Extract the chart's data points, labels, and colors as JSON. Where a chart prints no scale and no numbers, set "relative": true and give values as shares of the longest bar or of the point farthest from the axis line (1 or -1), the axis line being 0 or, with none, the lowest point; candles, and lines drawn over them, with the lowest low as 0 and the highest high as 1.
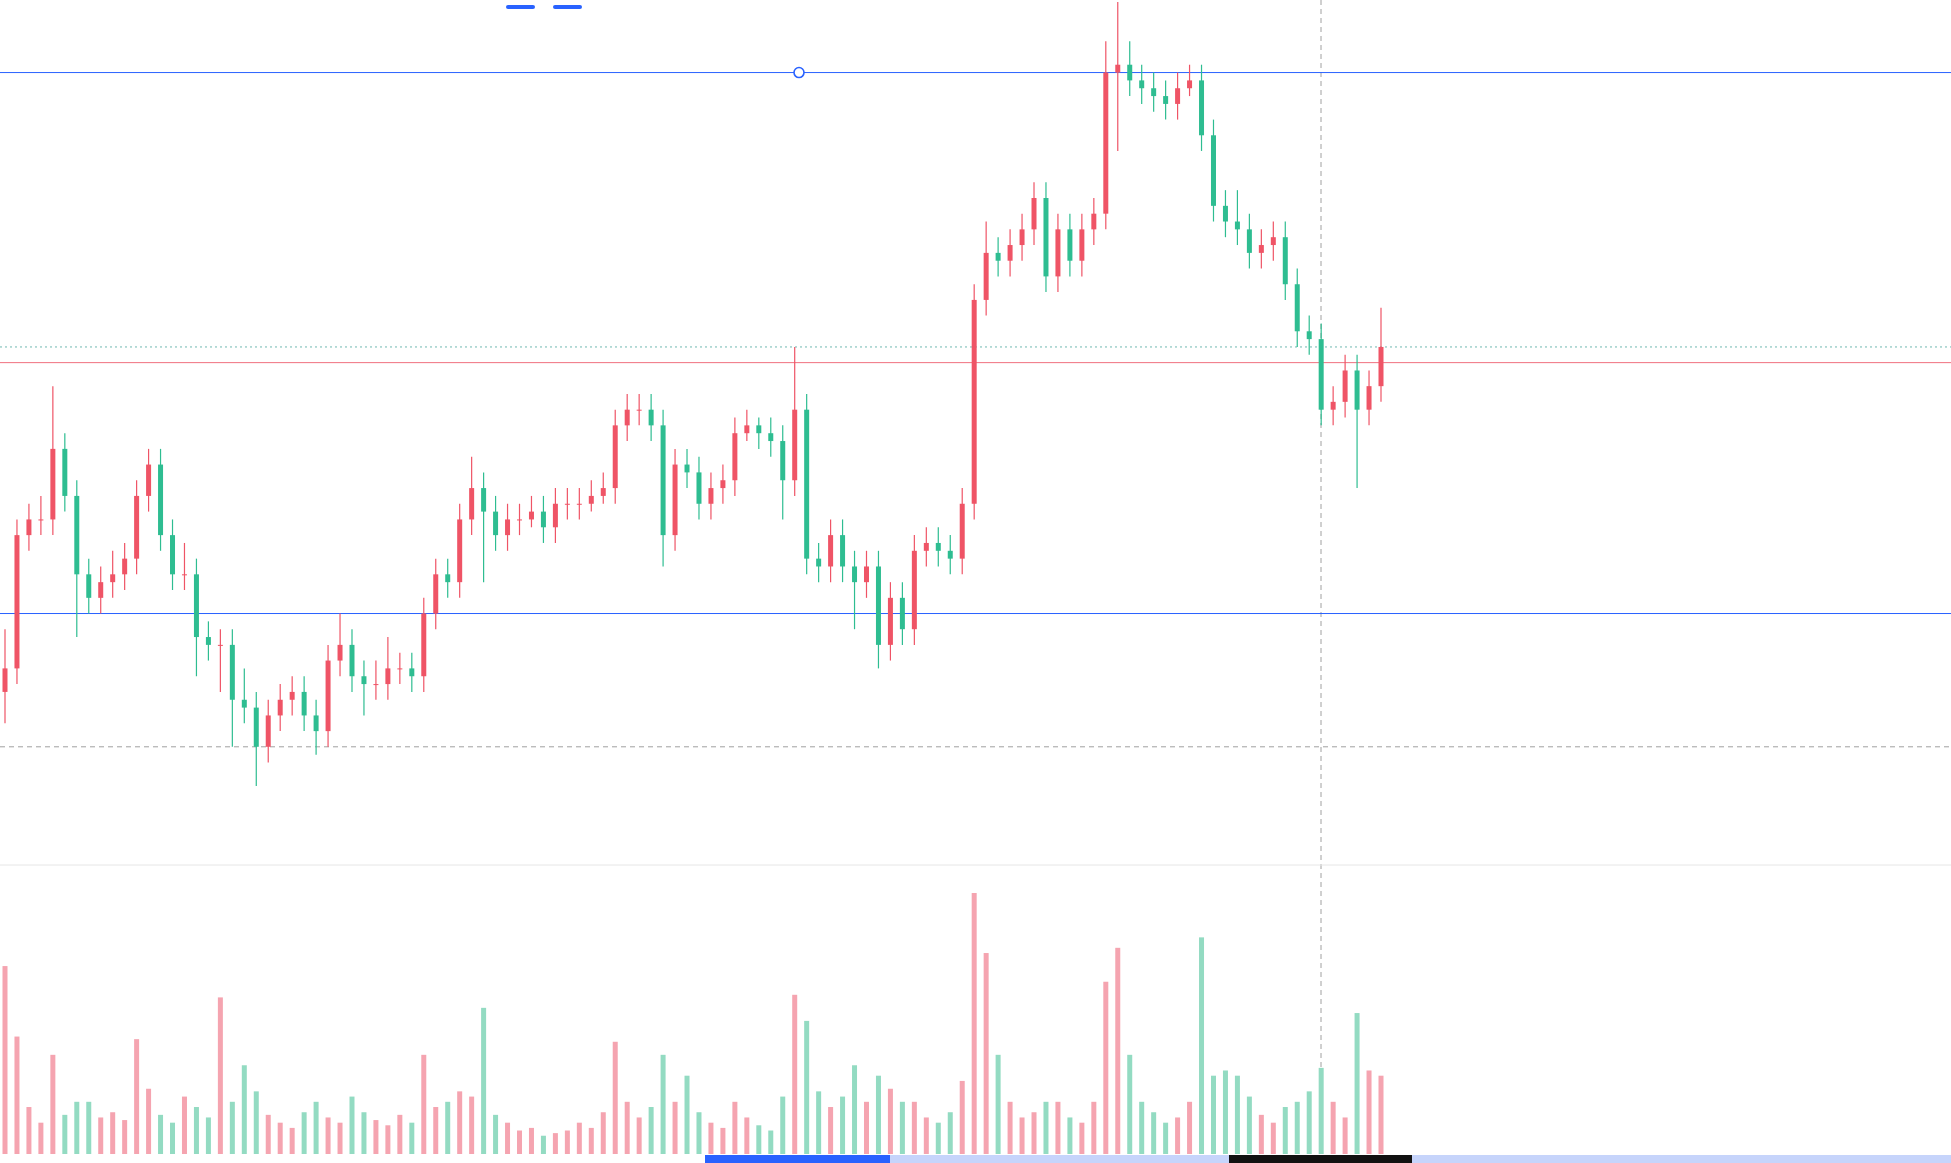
{
  "chart_data": [
    {
      "type": "candlestick",
      "relative": true,
      "tick_labels": false,
      "categories": [
        null,
        null,
        null,
        null,
        null,
        null,
        null,
        null,
        null,
        null,
        null,
        null,
        null,
        null,
        null,
        null,
        null,
        null,
        null,
        null,
        null,
        null,
        null,
        null,
        null,
        null,
        null,
        null,
        null,
        null,
        null,
        null,
        null,
        null,
        null,
        null,
        null,
        null,
        null,
        null,
        null,
        null,
        null,
        null,
        null,
        null,
        null,
        null,
        null,
        null,
        null,
        null,
        null,
        null,
        null,
        null,
        null,
        null,
        null,
        null,
        null,
        null,
        null,
        null,
        null,
        null,
        null,
        null,
        null,
        null,
        null,
        null,
        null,
        null,
        null,
        null,
        null,
        null,
        null,
        null,
        null,
        null,
        null,
        null,
        null,
        null,
        null,
        null,
        null,
        null,
        null,
        null,
        null,
        null,
        null,
        null,
        null,
        null,
        null,
        null,
        null,
        null,
        null,
        null,
        null,
        null,
        null,
        null,
        null,
        null,
        null,
        null,
        null,
        null,
        null,
        null
      ],
      "ohlc": [
        [
          0.12,
          0.2,
          0.08,
          0.15
        ],
        [
          0.15,
          0.34,
          0.13,
          0.32
        ],
        [
          0.32,
          0.36,
          0.3,
          0.34
        ],
        [
          0.34,
          0.37,
          0.32,
          0.34
        ],
        [
          0.34,
          0.51,
          0.32,
          0.43
        ],
        [
          0.43,
          0.45,
          0.35,
          0.37
        ],
        [
          0.37,
          0.39,
          0.19,
          0.27
        ],
        [
          0.27,
          0.29,
          0.22,
          0.24
        ],
        [
          0.24,
          0.28,
          0.22,
          0.26
        ],
        [
          0.26,
          0.3,
          0.24,
          0.27
        ],
        [
          0.27,
          0.31,
          0.25,
          0.29
        ],
        [
          0.29,
          0.39,
          0.27,
          0.37
        ],
        [
          0.37,
          0.43,
          0.35,
          0.41
        ],
        [
          0.41,
          0.43,
          0.3,
          0.32
        ],
        [
          0.32,
          0.34,
          0.25,
          0.27
        ],
        [
          0.27,
          0.31,
          0.25,
          0.27
        ],
        [
          0.27,
          0.29,
          0.14,
          0.19
        ],
        [
          0.19,
          0.21,
          0.16,
          0.18
        ],
        [
          0.18,
          0.2,
          0.12,
          0.18
        ],
        [
          0.18,
          0.2,
          0.05,
          0.11
        ],
        [
          0.11,
          0.15,
          0.08,
          0.1
        ],
        [
          0.1,
          0.12,
          0.0,
          0.05
        ],
        [
          0.05,
          0.11,
          0.03,
          0.09
        ],
        [
          0.09,
          0.13,
          0.07,
          0.11
        ],
        [
          0.11,
          0.14,
          0.09,
          0.12
        ],
        [
          0.12,
          0.14,
          0.07,
          0.09
        ],
        [
          0.09,
          0.11,
          0.04,
          0.07
        ],
        [
          0.07,
          0.18,
          0.05,
          0.16
        ],
        [
          0.16,
          0.22,
          0.14,
          0.18
        ],
        [
          0.18,
          0.2,
          0.12,
          0.14
        ],
        [
          0.14,
          0.16,
          0.09,
          0.13
        ],
        [
          0.13,
          0.16,
          0.11,
          0.13
        ],
        [
          0.13,
          0.19,
          0.11,
          0.15
        ],
        [
          0.15,
          0.17,
          0.13,
          0.15
        ],
        [
          0.15,
          0.17,
          0.12,
          0.14
        ],
        [
          0.14,
          0.24,
          0.12,
          0.22
        ],
        [
          0.22,
          0.29,
          0.2,
          0.27
        ],
        [
          0.27,
          0.29,
          0.24,
          0.26
        ],
        [
          0.26,
          0.36,
          0.24,
          0.34
        ],
        [
          0.34,
          0.42,
          0.32,
          0.38
        ],
        [
          0.38,
          0.4,
          0.26,
          0.35
        ],
        [
          0.35,
          0.37,
          0.3,
          0.32
        ],
        [
          0.32,
          0.36,
          0.3,
          0.34
        ],
        [
          0.34,
          0.36,
          0.32,
          0.34
        ],
        [
          0.34,
          0.37,
          0.33,
          0.35
        ],
        [
          0.35,
          0.37,
          0.31,
          0.33
        ],
        [
          0.33,
          0.38,
          0.31,
          0.36
        ],
        [
          0.36,
          0.38,
          0.34,
          0.36
        ],
        [
          0.36,
          0.38,
          0.34,
          0.36
        ],
        [
          0.36,
          0.39,
          0.35,
          0.37
        ],
        [
          0.37,
          0.4,
          0.36,
          0.38
        ],
        [
          0.38,
          0.48,
          0.36,
          0.46
        ],
        [
          0.46,
          0.5,
          0.44,
          0.48
        ],
        [
          0.48,
          0.5,
          0.46,
          0.48
        ],
        [
          0.48,
          0.5,
          0.44,
          0.46
        ],
        [
          0.46,
          0.48,
          0.28,
          0.32
        ],
        [
          0.32,
          0.43,
          0.3,
          0.41
        ],
        [
          0.41,
          0.43,
          0.38,
          0.4
        ],
        [
          0.4,
          0.42,
          0.34,
          0.36
        ],
        [
          0.36,
          0.4,
          0.34,
          0.38
        ],
        [
          0.38,
          0.41,
          0.36,
          0.39
        ],
        [
          0.39,
          0.47,
          0.37,
          0.45
        ],
        [
          0.45,
          0.48,
          0.44,
          0.46
        ],
        [
          0.46,
          0.47,
          0.43,
          0.45
        ],
        [
          0.45,
          0.47,
          0.42,
          0.44
        ],
        [
          0.44,
          0.46,
          0.34,
          0.39
        ],
        [
          0.39,
          0.56,
          0.37,
          0.48
        ],
        [
          0.48,
          0.5,
          0.27,
          0.29
        ],
        [
          0.29,
          0.31,
          0.26,
          0.28
        ],
        [
          0.28,
          0.34,
          0.26,
          0.32
        ],
        [
          0.32,
          0.34,
          0.26,
          0.28
        ],
        [
          0.28,
          0.3,
          0.2,
          0.26
        ],
        [
          0.26,
          0.3,
          0.24,
          0.28
        ],
        [
          0.28,
          0.3,
          0.15,
          0.18
        ],
        [
          0.18,
          0.26,
          0.16,
          0.24
        ],
        [
          0.24,
          0.26,
          0.18,
          0.2
        ],
        [
          0.2,
          0.32,
          0.18,
          0.3
        ],
        [
          0.3,
          0.33,
          0.28,
          0.31
        ],
        [
          0.31,
          0.33,
          0.28,
          0.3
        ],
        [
          0.3,
          0.32,
          0.27,
          0.29
        ],
        [
          0.29,
          0.38,
          0.27,
          0.36
        ],
        [
          0.36,
          0.64,
          0.34,
          0.62
        ],
        [
          0.62,
          0.72,
          0.6,
          0.68
        ],
        [
          0.68,
          0.7,
          0.65,
          0.67
        ],
        [
          0.67,
          0.71,
          0.65,
          0.69
        ],
        [
          0.69,
          0.73,
          0.67,
          0.71
        ],
        [
          0.71,
          0.77,
          0.69,
          0.75
        ],
        [
          0.75,
          0.77,
          0.63,
          0.65
        ],
        [
          0.65,
          0.73,
          0.63,
          0.71
        ],
        [
          0.71,
          0.73,
          0.65,
          0.67
        ],
        [
          0.67,
          0.73,
          0.65,
          0.71
        ],
        [
          0.71,
          0.75,
          0.69,
          0.73
        ],
        [
          0.73,
          0.95,
          0.71,
          0.91
        ],
        [
          0.91,
          1.0,
          0.81,
          0.92
        ],
        [
          0.92,
          0.95,
          0.88,
          0.9
        ],
        [
          0.9,
          0.92,
          0.87,
          0.89
        ],
        [
          0.89,
          0.91,
          0.86,
          0.88
        ],
        [
          0.88,
          0.9,
          0.85,
          0.87
        ],
        [
          0.87,
          0.91,
          0.85,
          0.89
        ],
        [
          0.89,
          0.92,
          0.88,
          0.9
        ],
        [
          0.9,
          0.92,
          0.81,
          0.83
        ],
        [
          0.83,
          0.85,
          0.72,
          0.74
        ],
        [
          0.74,
          0.76,
          0.7,
          0.72
        ],
        [
          0.72,
          0.76,
          0.69,
          0.71
        ],
        [
          0.71,
          0.73,
          0.66,
          0.68
        ],
        [
          0.68,
          0.71,
          0.66,
          0.69
        ],
        [
          0.69,
          0.72,
          0.67,
          0.7
        ],
        [
          0.7,
          0.72,
          0.62,
          0.64
        ],
        [
          0.64,
          0.66,
          0.56,
          0.58
        ],
        [
          0.58,
          0.6,
          0.55,
          0.57
        ],
        [
          0.57,
          0.59,
          0.46,
          0.48
        ],
        [
          0.48,
          0.51,
          0.46,
          0.49
        ],
        [
          0.49,
          0.55,
          0.47,
          0.53
        ],
        [
          0.53,
          0.55,
          0.38,
          0.48
        ],
        [
          0.48,
          0.53,
          0.46,
          0.51
        ],
        [
          0.51,
          0.61,
          0.49,
          0.56
        ]
      ],
      "colors": [
        "#ef5466",
        "#ef5466",
        "#ef5466",
        "#ef5466",
        "#ef5466",
        "#2ebd91",
        "#2ebd91",
        "#2ebd91",
        "#ef5466",
        "#ef5466",
        "#ef5466",
        "#ef5466",
        "#ef5466",
        "#2ebd91",
        "#2ebd91",
        "#ef5466",
        "#2ebd91",
        "#2ebd91",
        "#ef5466",
        "#2ebd91",
        "#2ebd91",
        "#2ebd91",
        "#ef5466",
        "#ef5466",
        "#ef5466",
        "#2ebd91",
        "#2ebd91",
        "#ef5466",
        "#ef5466",
        "#2ebd91",
        "#2ebd91",
        "#ef5466",
        "#ef5466",
        "#ef5466",
        "#2ebd91",
        "#ef5466",
        "#ef5466",
        "#2ebd91",
        "#ef5466",
        "#ef5466",
        "#2ebd91",
        "#2ebd91",
        "#ef5466",
        "#ef5466",
        "#ef5466",
        "#2ebd91",
        "#ef5466",
        "#ef5466",
        "#ef5466",
        "#ef5466",
        "#ef5466",
        "#ef5466",
        "#ef5466",
        "#ef5466",
        "#2ebd91",
        "#2ebd91",
        "#ef5466",
        "#2ebd91",
        "#2ebd91",
        "#ef5466",
        "#ef5466",
        "#ef5466",
        "#ef5466",
        "#2ebd91",
        "#2ebd91",
        "#2ebd91",
        "#ef5466",
        "#2ebd91",
        "#2ebd91",
        "#ef5466",
        "#2ebd91",
        "#2ebd91",
        "#ef5466",
        "#2ebd91",
        "#ef5466",
        "#2ebd91",
        "#ef5466",
        "#ef5466",
        "#2ebd91",
        "#2ebd91",
        "#ef5466",
        "#ef5466",
        "#ef5466",
        "#2ebd91",
        "#ef5466",
        "#ef5466",
        "#ef5466",
        "#2ebd91",
        "#ef5466",
        "#2ebd91",
        "#ef5466",
        "#ef5466",
        "#ef5466",
        "#ef5466",
        "#2ebd91",
        "#2ebd91",
        "#2ebd91",
        "#2ebd91",
        "#ef5466",
        "#ef5466",
        "#2ebd91",
        "#2ebd91",
        "#2ebd91",
        "#2ebd91",
        "#2ebd91",
        "#ef5466",
        "#ef5466",
        "#2ebd91",
        "#2ebd91",
        "#2ebd91",
        "#2ebd91",
        "#ef5466",
        "#ef5466",
        "#2ebd91",
        "#ef5466",
        "#ef5466"
      ],
      "ref_lines": [
        {
          "axis": "y",
          "value": 0.91,
          "color": "#2962ff",
          "line_style": "solid"
        },
        {
          "axis": "y",
          "value": 0.22,
          "color": "#2962ff",
          "line_style": "solid"
        },
        {
          "axis": "y",
          "value": 0.54,
          "color": "#f0707f",
          "line_style": "solid"
        },
        {
          "axis": "y",
          "value": 0.56,
          "color": "#6fb8b0",
          "line_style": "dotted"
        },
        {
          "axis": "y",
          "value": 0.05,
          "color": "#a0a0a0",
          "line_style": "dashed"
        }
      ]
    },
    {
      "type": "bar",
      "relative": true,
      "tick_labels": false,
      "categories": [
        null,
        null,
        null,
        null,
        null,
        null,
        null,
        null,
        null,
        null,
        null,
        null,
        null,
        null,
        null,
        null,
        null,
        null,
        null,
        null,
        null,
        null,
        null,
        null,
        null,
        null,
        null,
        null,
        null,
        null,
        null,
        null,
        null,
        null,
        null,
        null,
        null,
        null,
        null,
        null,
        null,
        null,
        null,
        null,
        null,
        null,
        null,
        null,
        null,
        null,
        null,
        null,
        null,
        null,
        null,
        null,
        null,
        null,
        null,
        null,
        null,
        null,
        null,
        null,
        null,
        null,
        null,
        null,
        null,
        null,
        null,
        null,
        null,
        null,
        null,
        null,
        null,
        null,
        null,
        null,
        null,
        null,
        null,
        null,
        null,
        null,
        null,
        null,
        null,
        null,
        null,
        null,
        null,
        null,
        null,
        null,
        null,
        null,
        null,
        null,
        null,
        null,
        null,
        null,
        null,
        null,
        null,
        null,
        null,
        null,
        null,
        null,
        null,
        null,
        null,
        null
      ],
      "values": [
        0.72,
        0.45,
        0.18,
        0.12,
        0.38,
        0.15,
        0.2,
        0.2,
        0.14,
        0.16,
        0.13,
        0.44,
        0.25,
        0.15,
        0.12,
        0.22,
        0.18,
        0.14,
        0.6,
        0.2,
        0.34,
        0.24,
        0.15,
        0.12,
        0.1,
        0.16,
        0.2,
        0.14,
        0.12,
        0.22,
        0.16,
        0.13,
        0.11,
        0.15,
        0.12,
        0.38,
        0.18,
        0.2,
        0.24,
        0.22,
        0.56,
        0.15,
        0.12,
        0.09,
        0.1,
        0.07,
        0.08,
        0.09,
        0.12,
        0.1,
        0.16,
        0.43,
        0.2,
        0.14,
        0.18,
        0.38,
        0.2,
        0.3,
        0.16,
        0.12,
        0.1,
        0.2,
        0.14,
        0.11,
        0.09,
        0.22,
        0.61,
        0.51,
        0.24,
        0.18,
        0.22,
        0.34,
        0.2,
        0.3,
        0.25,
        0.2,
        0.2,
        0.14,
        0.12,
        0.16,
        0.28,
        1,
        0.77,
        0.38,
        0.2,
        0.14,
        0.16,
        0.2,
        0.2,
        0.14,
        0.12,
        0.2,
        0.66,
        0.79,
        0.38,
        0.2,
        0.16,
        0.12,
        0.14,
        0.2,
        0.83,
        0.3,
        0.32,
        0.3,
        0.22,
        0.15,
        0.12,
        0.18,
        0.2,
        0.24,
        0.33,
        0.2,
        0.14,
        0.54,
        0.32,
        0.3
      ],
      "colors": [
        "#f5a4b0",
        "#f5a4b0",
        "#f5a4b0",
        "#f5a4b0",
        "#f5a4b0",
        "#93dbc2",
        "#93dbc2",
        "#93dbc2",
        "#f5a4b0",
        "#f5a4b0",
        "#f5a4b0",
        "#f5a4b0",
        "#f5a4b0",
        "#93dbc2",
        "#93dbc2",
        "#f5a4b0",
        "#93dbc2",
        "#93dbc2",
        "#f5a4b0",
        "#93dbc2",
        "#93dbc2",
        "#93dbc2",
        "#f5a4b0",
        "#f5a4b0",
        "#f5a4b0",
        "#93dbc2",
        "#93dbc2",
        "#f5a4b0",
        "#f5a4b0",
        "#93dbc2",
        "#93dbc2",
        "#f5a4b0",
        "#f5a4b0",
        "#f5a4b0",
        "#93dbc2",
        "#f5a4b0",
        "#f5a4b0",
        "#93dbc2",
        "#f5a4b0",
        "#f5a4b0",
        "#93dbc2",
        "#93dbc2",
        "#f5a4b0",
        "#f5a4b0",
        "#f5a4b0",
        "#93dbc2",
        "#f5a4b0",
        "#f5a4b0",
        "#f5a4b0",
        "#f5a4b0",
        "#f5a4b0",
        "#f5a4b0",
        "#f5a4b0",
        "#f5a4b0",
        "#93dbc2",
        "#93dbc2",
        "#f5a4b0",
        "#93dbc2",
        "#93dbc2",
        "#f5a4b0",
        "#f5a4b0",
        "#f5a4b0",
        "#f5a4b0",
        "#93dbc2",
        "#93dbc2",
        "#93dbc2",
        "#f5a4b0",
        "#93dbc2",
        "#93dbc2",
        "#f5a4b0",
        "#93dbc2",
        "#93dbc2",
        "#f5a4b0",
        "#93dbc2",
        "#f5a4b0",
        "#93dbc2",
        "#f5a4b0",
        "#f5a4b0",
        "#93dbc2",
        "#93dbc2",
        "#f5a4b0",
        "#f5a4b0",
        "#f5a4b0",
        "#93dbc2",
        "#f5a4b0",
        "#f5a4b0",
        "#f5a4b0",
        "#93dbc2",
        "#f5a4b0",
        "#93dbc2",
        "#f5a4b0",
        "#f5a4b0",
        "#f5a4b0",
        "#f5a4b0",
        "#93dbc2",
        "#93dbc2",
        "#93dbc2",
        "#93dbc2",
        "#f5a4b0",
        "#f5a4b0",
        "#93dbc2",
        "#93dbc2",
        "#93dbc2",
        "#93dbc2",
        "#93dbc2",
        "#f5a4b0",
        "#f5a4b0",
        "#93dbc2",
        "#93dbc2",
        "#93dbc2",
        "#93dbc2",
        "#f5a4b0",
        "#f5a4b0",
        "#93dbc2",
        "#f5a4b0",
        "#f5a4b0"
      ]
    }
  ]
}
